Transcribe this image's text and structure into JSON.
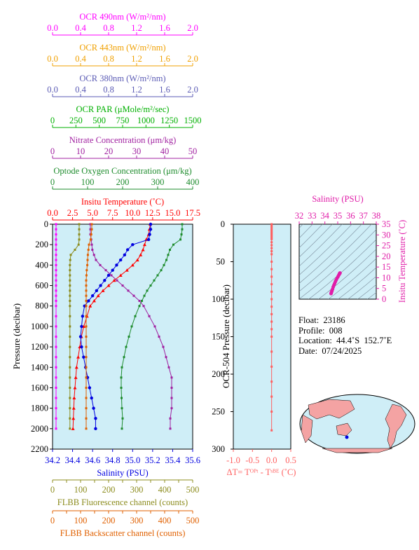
{
  "colors": {
    "ocr490": "#ff00ff",
    "ocr443": "#f0a000",
    "ocr380": "#5a5ab4",
    "par": "#00b000",
    "nitrate": "#a020a0",
    "oxygen": "#1e8c2d",
    "temperature": "#ff0000",
    "salinity": "#0000e0",
    "fluor": "#8c8c1e",
    "backscatter": "#e06000",
    "plot_bg": "#cfeef7",
    "dt": "#ff6060",
    "ts": "#e01ca8"
  },
  "top_axes": [
    {
      "key": "ocr490",
      "label": "OCR 490nm (W/m²/nm)",
      "ticks": [
        "0.0",
        "0.4",
        "0.8",
        "1.2",
        "1.6",
        "2.0"
      ]
    },
    {
      "key": "ocr443",
      "label": "OCR 443nm (W/m²/nm)",
      "ticks": [
        "0.0",
        "0.4",
        "0.8",
        "1.2",
        "1.6",
        "2.0"
      ]
    },
    {
      "key": "ocr380",
      "label": "OCR 380nm (W/m²/nm)",
      "ticks": [
        "0.0",
        "0.4",
        "0.8",
        "1.2",
        "1.6",
        "2.0"
      ]
    },
    {
      "key": "par",
      "label": "OCR PAR (μMole/m²/sec)",
      "ticks": [
        "0",
        "250",
        "500",
        "750",
        "1000",
        "1250",
        "1500"
      ]
    },
    {
      "key": "nitrate",
      "label": "Nitrate Concentration (μm/kg)",
      "ticks": [
        "0",
        "10",
        "20",
        "30",
        "40",
        "50"
      ]
    },
    {
      "key": "oxygen",
      "label": "Optode Oxygen Concentration (μm/kg)",
      "ticks": [
        "0",
        "100",
        "200",
        "300",
        "400"
      ]
    },
    {
      "key": "temperature",
      "label": "Insitu Temperature (˚C)",
      "ticks": [
        "0.0",
        "2.5",
        "5.0",
        "7.5",
        "10.0",
        "12.5",
        "15.0",
        "17.5"
      ]
    }
  ],
  "bottom_axes": [
    {
      "key": "salinity",
      "label": "Salinity (PSU)",
      "ticks": [
        "34.2",
        "34.4",
        "34.6",
        "34.8",
        "35.0",
        "35.2",
        "35.4",
        "35.6"
      ]
    },
    {
      "key": "fluor",
      "label": "FLBB Fluorescence channel (counts)",
      "ticks": [
        "0",
        "50",
        "100",
        "150",
        "200",
        "250",
        "300",
        "350",
        "400",
        "450",
        "500"
      ]
    },
    {
      "key": "backscatter",
      "label": "FLBB Backscatter channel (counts)",
      "ticks": [
        "0",
        "50",
        "100",
        "150",
        "200",
        "250",
        "300",
        "350",
        "400",
        "450",
        "500"
      ]
    }
  ],
  "pressure_axis": {
    "label": "Pressure (decibar)",
    "ticks": [
      "0",
      "200",
      "400",
      "600",
      "800",
      "1000",
      "1200",
      "1400",
      "1600",
      "1800",
      "2000",
      "2200"
    ]
  },
  "ocr_pressure_axis": {
    "label": "OCR-504 Pressure (decibar)",
    "ticks": [
      "0",
      "50",
      "100",
      "150",
      "200",
      "250",
      "300"
    ]
  },
  "dt_axis": {
    "label": "ΔT= Tᴼᴾᵗ - Tˢᴮᴱ (˚C)",
    "ticks": [
      "-1.0",
      "-0.5",
      "0.0",
      "0.5"
    ]
  },
  "ts_axes": {
    "top_label": "Salinity (PSU)",
    "top_ticks": [
      "32",
      "33",
      "34",
      "35",
      "36",
      "37",
      "38"
    ],
    "right_label": "Insitu Temperature (˚C)",
    "right_ticks": [
      "0",
      "5",
      "10",
      "15",
      "20",
      "25",
      "30",
      "35"
    ]
  },
  "info": {
    "float": "Float:  23186",
    "profile": "Profile:  008",
    "location": "Location:  44.4˚S  152.7˚E",
    "date": "Date:  07/24/2025"
  },
  "chart_data": [
    {
      "type": "line",
      "y_name": "pressure (decibar)",
      "ylim": [
        2200,
        0
      ],
      "series": [
        {
          "name": "Insitu Temperature",
          "axis": "temperature",
          "xlim": [
            0,
            17.5
          ],
          "x": [
            12.2,
            12.1,
            12.0,
            11.7,
            11.5,
            11.3,
            11.0,
            10.6,
            10.0,
            9.3,
            8.5,
            7.7,
            7.0,
            6.3,
            5.7,
            5.2,
            4.7,
            4.3,
            3.9,
            3.6,
            3.4,
            3.2,
            3.0,
            2.9,
            2.8,
            2.7,
            2.65,
            2.6,
            2.55
          ],
          "y": [
            0,
            50,
            100,
            150,
            200,
            250,
            300,
            350,
            400,
            450,
            500,
            550,
            600,
            650,
            700,
            750,
            800,
            900,
            1000,
            1100,
            1200,
            1300,
            1400,
            1500,
            1600,
            1700,
            1800,
            1900,
            2000
          ]
        },
        {
          "name": "Salinity",
          "axis": "salinity",
          "xlim": [
            34.2,
            35.6
          ],
          "x": [
            35.18,
            35.18,
            35.17,
            35.16,
            35.0,
            34.95,
            34.92,
            34.88,
            34.84,
            34.8,
            34.76,
            34.72,
            34.68,
            34.64,
            34.6,
            34.56,
            34.52,
            34.5,
            34.49,
            34.48,
            34.49,
            34.51,
            34.53,
            34.55,
            34.57,
            34.59,
            34.61,
            34.63,
            34.63
          ],
          "y": [
            0,
            50,
            100,
            150,
            200,
            250,
            300,
            350,
            400,
            450,
            500,
            550,
            600,
            650,
            700,
            750,
            800,
            900,
            1000,
            1100,
            1200,
            1300,
            1400,
            1500,
            1600,
            1700,
            1800,
            1900,
            2000
          ]
        },
        {
          "name": "Optode Oxygen Concentration",
          "axis": "oxygen",
          "xlim": [
            0,
            400
          ],
          "x": [
            370,
            370,
            368,
            365,
            345,
            335,
            330,
            325,
            318,
            310,
            300,
            290,
            280,
            270,
            262,
            255,
            248,
            236,
            226,
            218,
            210,
            204,
            198,
            196,
            196,
            197,
            198,
            200,
            198
          ],
          "y": [
            0,
            50,
            100,
            150,
            200,
            250,
            300,
            350,
            400,
            450,
            500,
            550,
            600,
            650,
            700,
            750,
            800,
            900,
            1000,
            1100,
            1200,
            1300,
            1400,
            1500,
            1600,
            1700,
            1800,
            1900,
            2000
          ]
        },
        {
          "name": "Nitrate Concentration",
          "axis": "nitrate",
          "xlim": [
            0,
            50
          ],
          "x": [
            13.5,
            13.5,
            13.5,
            13.8,
            14.0,
            14.2,
            14.8,
            15.5,
            17.0,
            19.0,
            21.0,
            23.0,
            25.0,
            27.0,
            29.0,
            31.0,
            32.5,
            34.5,
            36.5,
            38.0,
            39.5,
            40.5,
            41.5,
            42.5,
            42.5,
            42.5,
            42.5,
            42.0,
            42.0
          ],
          "y": [
            0,
            50,
            100,
            150,
            200,
            250,
            300,
            350,
            400,
            450,
            500,
            550,
            600,
            650,
            700,
            750,
            800,
            900,
            1000,
            1100,
            1200,
            1300,
            1400,
            1500,
            1600,
            1700,
            1800,
            1900,
            2000
          ]
        },
        {
          "name": "FLBB Fluorescence channel",
          "axis": "fluor",
          "xlim": [
            0,
            500
          ],
          "x": [
            95,
            95,
            95,
            95,
            93,
            80,
            65,
            63,
            62,
            62,
            62,
            62,
            62,
            62,
            62,
            62,
            62,
            62,
            62,
            62,
            62,
            62,
            62,
            62,
            62,
            62,
            62,
            62,
            62
          ],
          "y": [
            0,
            50,
            100,
            150,
            200,
            250,
            300,
            350,
            400,
            450,
            500,
            550,
            600,
            650,
            700,
            750,
            800,
            900,
            1000,
            1100,
            1200,
            1300,
            1400,
            1500,
            1600,
            1700,
            1800,
            1900,
            2000
          ]
        },
        {
          "name": "FLBB Backscatter channel",
          "axis": "backscatter",
          "xlim": [
            0,
            500
          ],
          "x": [
            140,
            140,
            138,
            136,
            130,
            128,
            126,
            125,
            124,
            122,
            121,
            120,
            120,
            120,
            120,
            120,
            120,
            120,
            120,
            120,
            120,
            120,
            120,
            120,
            120,
            120,
            120,
            120,
            120
          ],
          "y": [
            0,
            50,
            100,
            150,
            200,
            250,
            300,
            350,
            400,
            450,
            500,
            550,
            600,
            650,
            700,
            750,
            800,
            900,
            1000,
            1100,
            1200,
            1300,
            1400,
            1500,
            1600,
            1700,
            1800,
            1900,
            2000
          ]
        },
        {
          "name": "OCR 490nm",
          "axis": "ocr490",
          "xlim": [
            0,
            2.0
          ],
          "x": [
            0.05,
            0.05,
            0.05,
            0.05,
            0.05,
            0.05,
            0.05,
            0.05,
            0.05,
            0.05,
            0.05,
            0.05,
            0.05,
            0.05,
            0.05,
            0.05,
            0.05,
            0.05,
            0.05,
            0.05,
            0.05,
            0.05,
            0.05,
            0.05,
            0.05,
            0.05,
            0.05,
            0.05,
            0.05
          ],
          "y": [
            0,
            50,
            100,
            150,
            200,
            250,
            300,
            350,
            400,
            450,
            500,
            550,
            600,
            650,
            700,
            750,
            800,
            900,
            1000,
            1100,
            1200,
            1300,
            1400,
            1500,
            1600,
            1700,
            1800,
            1900,
            2000
          ]
        }
      ]
    },
    {
      "type": "scatter",
      "name": "Optode minus SBE temperature difference",
      "x_name": "ΔT (˚C)",
      "xlim": [
        -1.0,
        0.5
      ],
      "y_name": "OCR-504 pressure (decibar)",
      "ylim": [
        300,
        0
      ],
      "x": [
        0.0,
        0.0,
        0.0,
        0.0,
        0.0,
        0.0,
        0.0,
        0.0,
        0.0,
        0.0,
        0.0,
        0.0,
        0.0,
        0.0,
        0.0,
        0.0,
        0.0,
        0.0,
        0.0,
        0.0,
        0.0,
        0.0,
        0.0,
        0.0,
        0.0,
        0.0,
        0.0,
        0.0,
        0.0,
        0.0,
        0.0,
        0.0,
        0.0
      ],
      "y": [
        0,
        2,
        4,
        6,
        8,
        10,
        12,
        14,
        16,
        18,
        20,
        24,
        28,
        32,
        36,
        40,
        50,
        60,
        70,
        80,
        90,
        100,
        110,
        120,
        130,
        140,
        150,
        170,
        190,
        210,
        230,
        250,
        275
      ]
    },
    {
      "type": "scatter",
      "name": "T-S diagram",
      "x_name": "Salinity (PSU)",
      "xlim": [
        32,
        38
      ],
      "y_name": "Insitu Temperature (˚C)",
      "ylim": [
        0,
        35
      ],
      "x": [
        34.48,
        34.5,
        34.52,
        34.55,
        34.6,
        34.65,
        34.7,
        34.76,
        34.82,
        34.88,
        34.95,
        35.02,
        35.08,
        35.12,
        35.15,
        35.17,
        35.18
      ],
      "y": [
        2.6,
        3.0,
        3.4,
        3.9,
        4.7,
        5.7,
        6.5,
        7.3,
        8.2,
        9.0,
        9.8,
        10.5,
        11.2,
        11.6,
        12.0,
        12.2,
        12.2
      ]
    }
  ]
}
